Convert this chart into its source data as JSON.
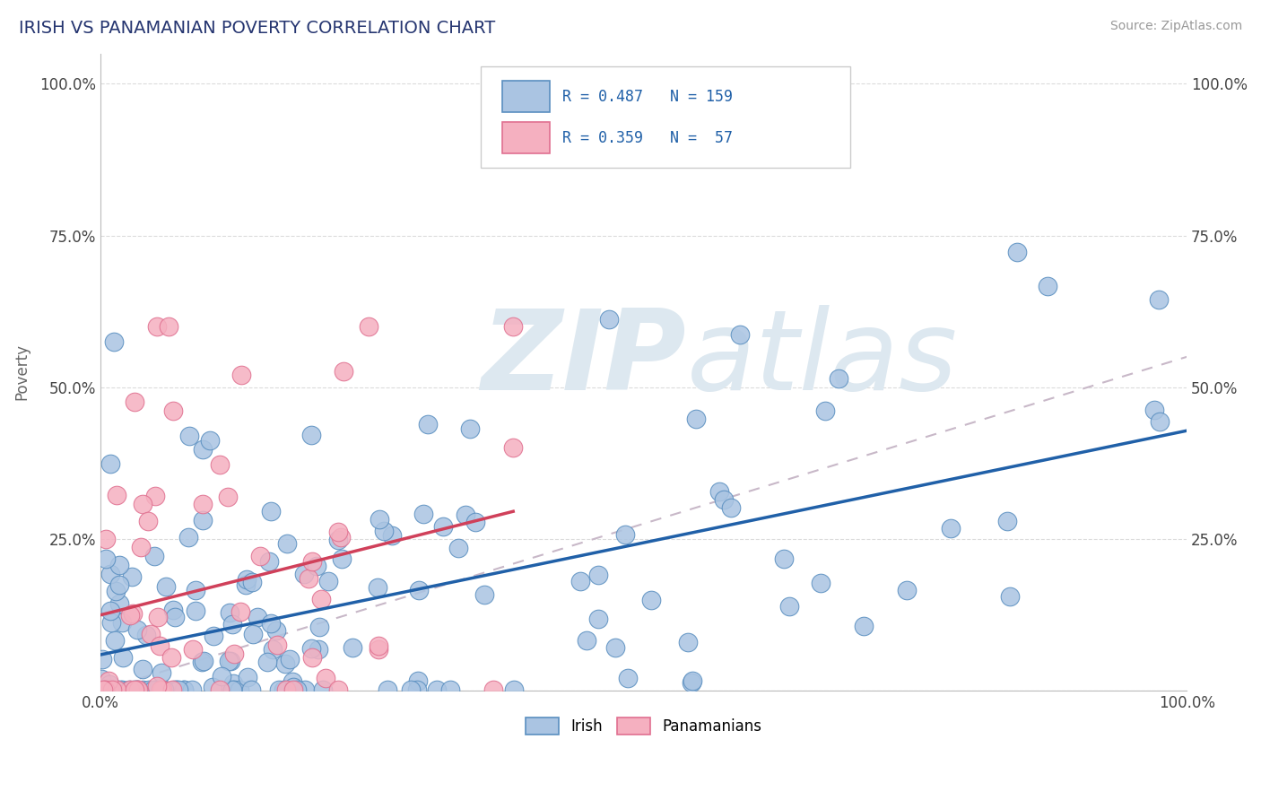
{
  "title": "IRISH VS PANAMANIAN POVERTY CORRELATION CHART",
  "source": "Source: ZipAtlas.com",
  "ylabel": "Poverty",
  "irish_R": 0.487,
  "irish_N": 159,
  "panama_R": 0.359,
  "panama_N": 57,
  "irish_color": "#aac4e2",
  "irish_edge_color": "#5a8fc0",
  "irish_line_color": "#2060a8",
  "panama_color": "#f5b0c0",
  "panama_edge_color": "#e07090",
  "panama_line_color": "#d0405a",
  "title_color": "#253570",
  "legend_text_color": "#2060a8",
  "source_color": "#999999",
  "background_color": "#ffffff",
  "grid_color": "#d8d8d8",
  "dashed_color": "#c8b8c8",
  "watermark_zip_color": "#dde8f0",
  "watermark_atlas_color": "#dde8f0",
  "xlim": [
    0.0,
    1.0
  ],
  "ylim": [
    0.0,
    1.05
  ]
}
